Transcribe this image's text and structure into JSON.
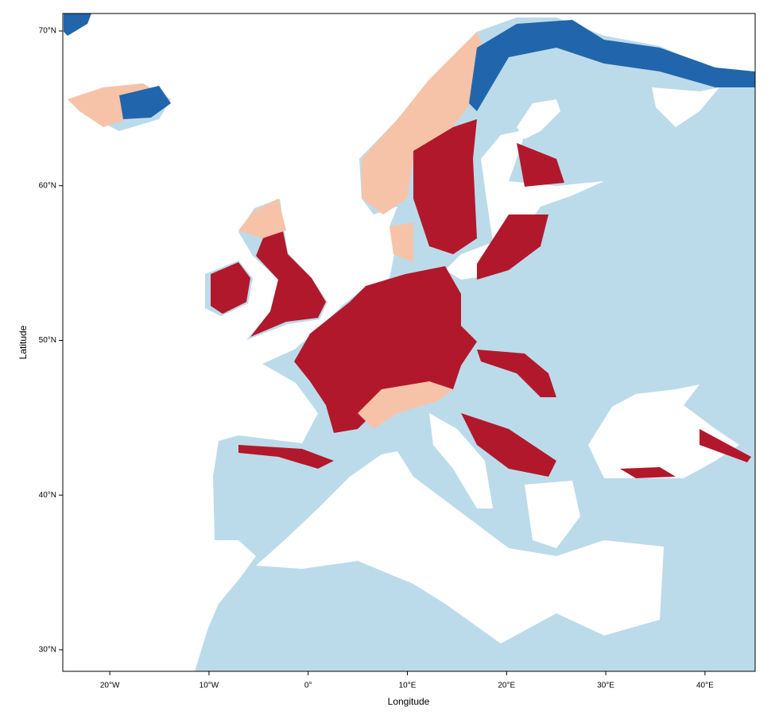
{
  "chart_data": {
    "type": "map",
    "xlabel": "Longitude",
    "ylabel": "Latitude",
    "xlim": [
      -24.74,
      45.06
    ],
    "ylim": [
      28.61,
      71.13
    ],
    "xticks": [
      {
        "value": -20,
        "label": "20°W"
      },
      {
        "value": -10,
        "label": "10°W"
      },
      {
        "value": 0,
        "label": "0°"
      },
      {
        "value": 10,
        "label": "10°E"
      },
      {
        "value": 20,
        "label": "20°E"
      },
      {
        "value": 30,
        "label": "30°E"
      },
      {
        "value": 40,
        "label": "40°E"
      }
    ],
    "yticks": [
      {
        "value": 30,
        "label": "30°N"
      },
      {
        "value": 40,
        "label": "40°N"
      },
      {
        "value": 50,
        "label": "50°N"
      },
      {
        "value": 60,
        "label": "60°N"
      },
      {
        "value": 70,
        "label": "70°N"
      }
    ]
  }
}
